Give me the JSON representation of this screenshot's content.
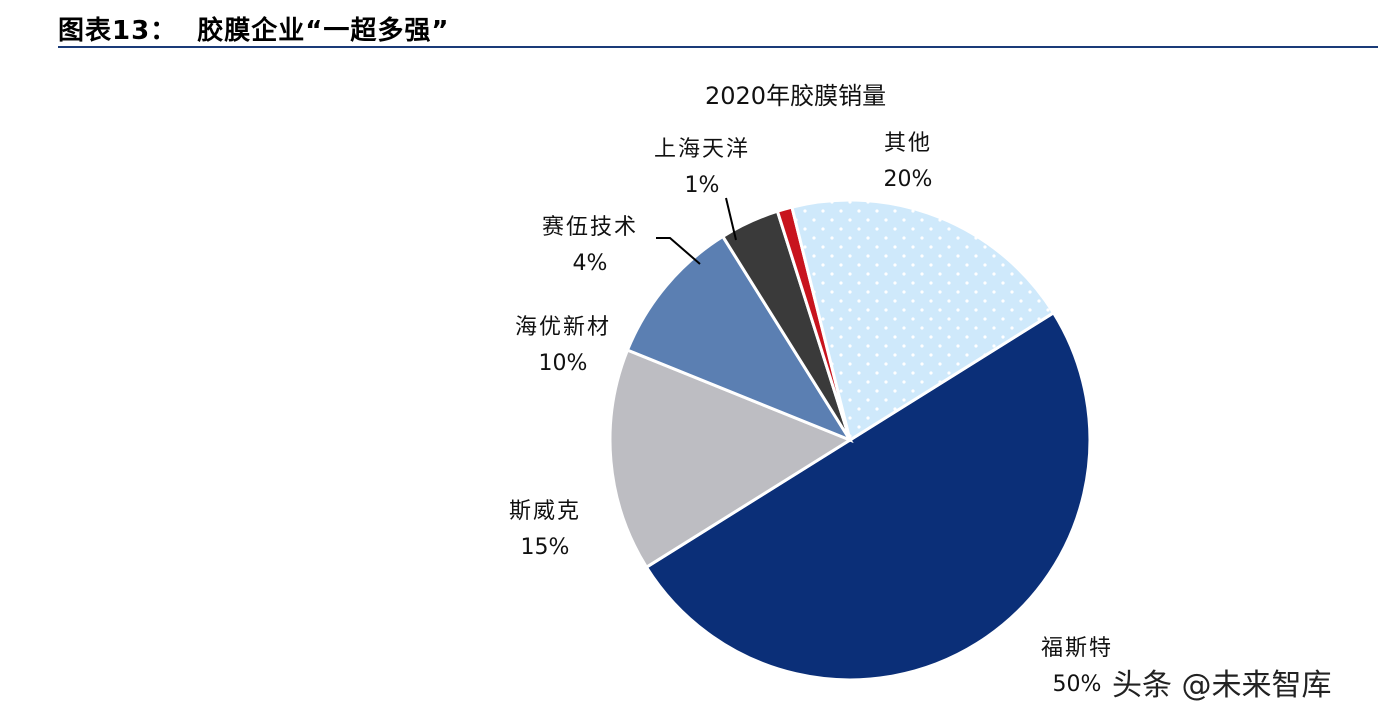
{
  "header": {
    "title": "图表13：  胶膜企业“一超多强”"
  },
  "chart_data": {
    "type": "pie",
    "title": "2020年胶膜销量",
    "slices": [
      {
        "label": "福斯特",
        "value": 50,
        "value_label": "50%",
        "color": "#0b2f78"
      },
      {
        "label": "斯威克",
        "value": 15,
        "value_label": "15%",
        "color": "#bdbdc2"
      },
      {
        "label": "海优新材",
        "value": 10,
        "value_label": "10%",
        "color": "#5b7fb2"
      },
      {
        "label": "赛伍技术",
        "value": 4,
        "value_label": "4%",
        "color": "#3a3a3a"
      },
      {
        "label": "上海天洋",
        "value": 1,
        "value_label": "1%",
        "color": "#c8141e"
      },
      {
        "label": "其他",
        "value": 20,
        "value_label": "20%",
        "color": "#cfe9fb",
        "pattern": "dotted"
      }
    ],
    "grid": false,
    "legend": "none"
  },
  "watermark": "头条 @未来智库"
}
